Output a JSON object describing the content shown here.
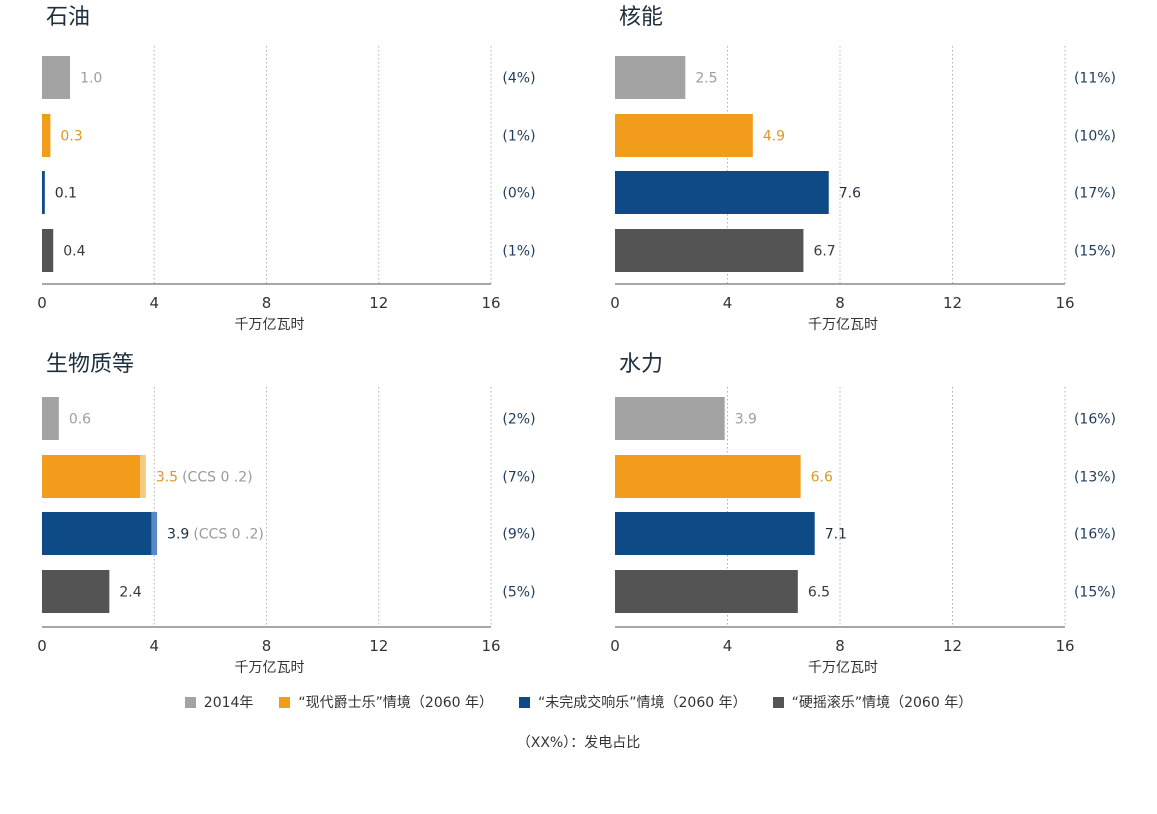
{
  "chart_data": {
    "type": "bar",
    "orientation": "horizontal",
    "xlim": [
      0,
      16
    ],
    "xticks": [
      "0",
      "4",
      "8",
      "12",
      "16"
    ],
    "xlabel": "千万亿瓦时",
    "grid": "vertical dotted",
    "legend_position": "bottom",
    "series": [
      {
        "name": "2014年",
        "color": "#a3a3a3"
      },
      {
        "name": "“现代爵士乐”情境（2060 年）",
        "color": "#f29c1b"
      },
      {
        "name": "“未完成交响乐”情境（2060 年）",
        "color": "#0e4a85"
      },
      {
        "name": "“硬摇滚乐”情境（2060 年）",
        "color": "#545454"
      }
    ],
    "note": "（XX%）：发电占比",
    "panels": [
      {
        "title": "石油",
        "values": [
          1.0,
          0.3,
          0.1,
          0.4
        ],
        "value_labels": [
          "1.0",
          "0.3",
          "0.1",
          "0.4"
        ],
        "ccs": [
          null,
          null,
          null,
          null
        ],
        "ccs_labels": [
          "",
          "",
          "",
          ""
        ],
        "shares": [
          "(4%)",
          "(1%)",
          "(0%)",
          "(1%)"
        ]
      },
      {
        "title": "核能",
        "values": [
          2.5,
          4.9,
          7.6,
          6.7
        ],
        "value_labels": [
          "2.5",
          "4.9",
          "7.6",
          "6.7"
        ],
        "ccs": [
          null,
          null,
          null,
          null
        ],
        "ccs_labels": [
          "",
          "",
          "",
          ""
        ],
        "shares": [
          "(11%)",
          "(10%)",
          "(17%)",
          "(15%)"
        ]
      },
      {
        "title": "生物质等",
        "values": [
          0.6,
          3.5,
          3.9,
          2.4
        ],
        "value_labels": [
          "0.6",
          "3.5",
          "3.9",
          "2.4"
        ],
        "ccs": [
          null,
          0.2,
          0.2,
          null
        ],
        "ccs_labels": [
          "",
          "(CCS 0 .2)",
          "(CCS 0 .2)",
          ""
        ],
        "shares": [
          "(2%)",
          "(7%)",
          "(9%)",
          "(5%)"
        ]
      },
      {
        "title": "水力",
        "values": [
          3.9,
          6.6,
          7.1,
          6.5
        ],
        "value_labels": [
          "3.9",
          "6.6",
          "7.1",
          "6.5"
        ],
        "ccs": [
          null,
          null,
          null,
          null
        ],
        "ccs_labels": [
          "",
          "",
          "",
          ""
        ],
        "shares": [
          "(16%)",
          "(13%)",
          "(16%)",
          "(15%)"
        ]
      }
    ]
  }
}
